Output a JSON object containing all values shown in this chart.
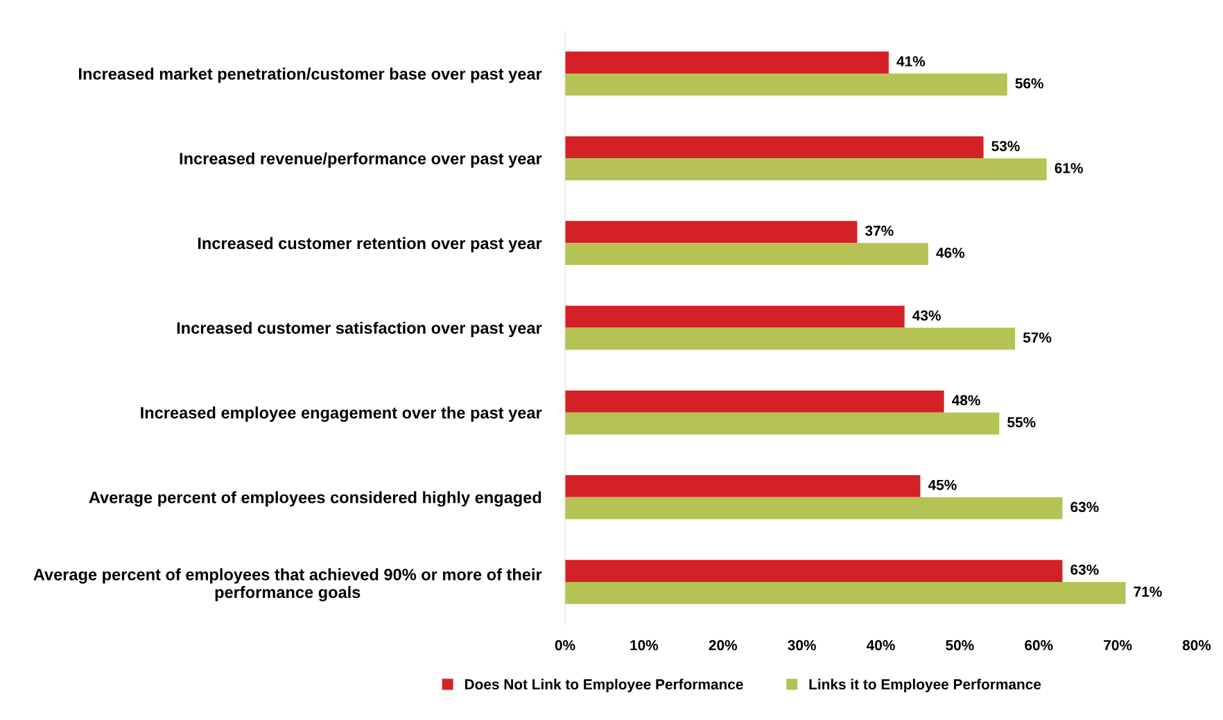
{
  "chart_data": {
    "type": "bar",
    "orientation": "horizontal",
    "categories": [
      "Increased market penetration/customer base over past year",
      "Increased revenue/performance over past year",
      "Increased customer retention over past year",
      "Increased customer satisfaction over past year",
      "Increased employee engagement over the past year",
      "Average percent of employees considered highly engaged",
      "Average percent of employees that achieved 90% or more of their\nperformance goals"
    ],
    "series": [
      {
        "name": "Does Not Link to Employee Performance",
        "color": "#d42027",
        "values": [
          41,
          53,
          37,
          43,
          48,
          45,
          63
        ],
        "value_labels": [
          "41%",
          "53%",
          "37%",
          "43%",
          "48%",
          "45%",
          "63%"
        ]
      },
      {
        "name": "Links it to Employee Performance",
        "color": "#b5c254",
        "values": [
          56,
          61,
          46,
          57,
          55,
          63,
          71
        ],
        "value_labels": [
          "56%",
          "61%",
          "46%",
          "57%",
          "55%",
          "63%",
          "71%"
        ]
      }
    ],
    "xlim": [
      0,
      80
    ],
    "xticks": [
      {
        "value": 0,
        "label": "0%"
      },
      {
        "value": 10,
        "label": "10%"
      },
      {
        "value": 20,
        "label": "20%"
      },
      {
        "value": 30,
        "label": "30%"
      },
      {
        "value": 40,
        "label": "40%"
      },
      {
        "value": 50,
        "label": "50%"
      },
      {
        "value": 60,
        "label": "60%"
      },
      {
        "value": 70,
        "label": "70%"
      },
      {
        "value": 80,
        "label": "80%"
      }
    ],
    "grid": false,
    "legend": "bottom"
  }
}
